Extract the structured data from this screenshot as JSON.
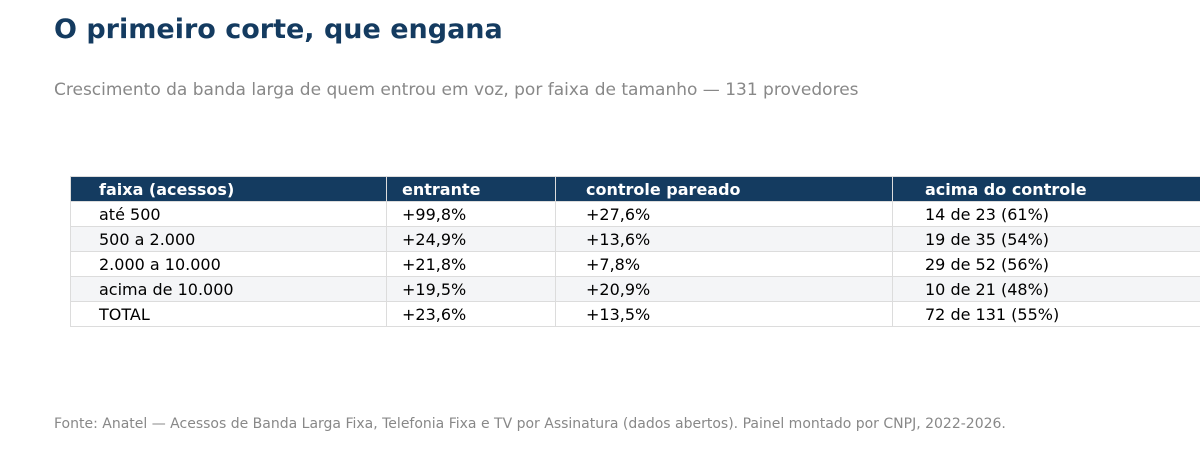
{
  "title": "O primeiro corte, que engana",
  "subtitle": "Crescimento da banda larga de quem entrou em voz, por faixa de tamanho — 131 provedores",
  "source": "Fonte: Anatel — Acessos de Banda Larga Fixa, Telefonia Fixa e TV por Assinatura (dados abertos). Painel montado por CNPJ, 2022-2026.",
  "colors": {
    "header_bg": "#143b60",
    "title": "#143b60",
    "muted_text": "#888888",
    "row_alt": "#f4f5f7",
    "border": "#dcdcdc"
  },
  "chart_data": {
    "type": "table",
    "title": "O primeiro corte, que engana",
    "subtitle": "Crescimento da banda larga de quem entrou em voz, por faixa de tamanho — 131 provedores",
    "columns": [
      "faixa (acessos)",
      "entrante",
      "controle pareado",
      "acima do controle"
    ],
    "rows": [
      [
        "até 500",
        "+99,8%",
        "+27,6%",
        "14 de 23 (61%)"
      ],
      [
        "500 a 2.000",
        "+24,9%",
        "+13,6%",
        "19 de 35 (54%)"
      ],
      [
        "2.000 a 10.000",
        "+21,8%",
        "+7,8%",
        "29 de 52 (56%)"
      ],
      [
        "acima de 10.000",
        "+19,5%",
        "+20,9%",
        "10 de 21 (48%)"
      ],
      [
        "TOTAL",
        "+23,6%",
        "+13,5%",
        "72 de 131 (55%)"
      ]
    ]
  }
}
